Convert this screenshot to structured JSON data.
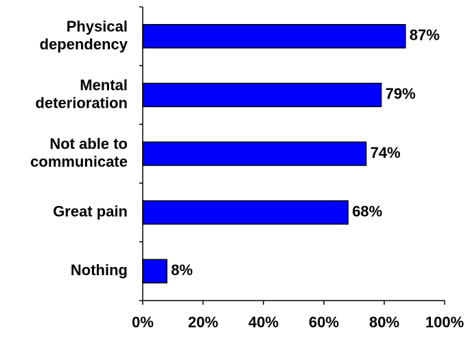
{
  "chart_data": {
    "type": "bar",
    "orientation": "horizontal",
    "categories": [
      "Physical\ndependency",
      "Mental\ndeterioration",
      "Not able to\ncommunicate",
      "Great pain",
      "Nothing"
    ],
    "values": [
      87,
      79,
      74,
      68,
      8
    ],
    "value_labels": [
      "87%",
      "79%",
      "74%",
      "68%",
      "8%"
    ],
    "color": "#0000ff",
    "xlim": [
      0,
      100
    ],
    "xticks": [
      {
        "value": 0,
        "label": "0%"
      },
      {
        "value": 20,
        "label": "20%"
      },
      {
        "value": 40,
        "label": "40%"
      },
      {
        "value": 60,
        "label": "60%"
      },
      {
        "value": 80,
        "label": "80%"
      },
      {
        "value": 100,
        "label": "100%"
      }
    ],
    "grid": false
  }
}
